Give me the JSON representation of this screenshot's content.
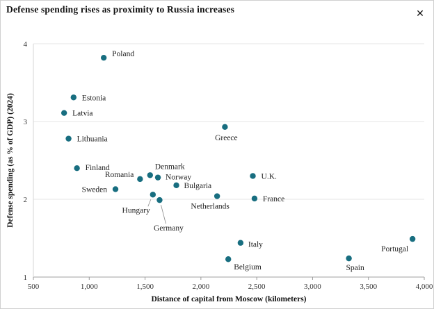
{
  "window": {
    "close_icon": "✕"
  },
  "chart_data": {
    "type": "scatter",
    "title": "Defense spending rises as proximity to Russia increases",
    "xlabel": "Distance of capital from Moscow (kilometers)",
    "ylabel": "Defense spending (as % of GDP) (2024)",
    "xlim": [
      500,
      4000
    ],
    "ylim": [
      1,
      4
    ],
    "x_ticks": [
      500,
      1000,
      1500,
      2000,
      2500,
      3000,
      3500,
      4000
    ],
    "x_tick_labels": [
      "500",
      "1,000",
      "1,500",
      "2,000",
      "2,500",
      "3,000",
      "3,500",
      "4,000"
    ],
    "y_ticks": [
      1,
      2,
      3,
      4
    ],
    "y_tick_labels": [
      "1",
      "2",
      "3",
      "4"
    ],
    "grid": "horizontal",
    "legend": "none",
    "point_color": "#186e80",
    "points": [
      {
        "label": "Poland",
        "x": 1130,
        "y": 3.82,
        "anchor": "start",
        "offset": [
          12,
          -2
        ]
      },
      {
        "label": "Estonia",
        "x": 860,
        "y": 3.31,
        "anchor": "start",
        "offset": [
          12,
          4
        ]
      },
      {
        "label": "Latvia",
        "x": 775,
        "y": 3.11,
        "anchor": "start",
        "offset": [
          12,
          4
        ]
      },
      {
        "label": "Lithuania",
        "x": 815,
        "y": 2.78,
        "anchor": "start",
        "offset": [
          12,
          4
        ]
      },
      {
        "label": "Finland",
        "x": 890,
        "y": 2.4,
        "anchor": "start",
        "offset": [
          12,
          3
        ]
      },
      {
        "label": "Sweden",
        "x": 1235,
        "y": 2.13,
        "anchor": "end",
        "offset": [
          -12,
          4
        ]
      },
      {
        "label": "Romania",
        "x": 1455,
        "y": 2.26,
        "anchor": "end",
        "offset": [
          -9,
          -3
        ]
      },
      {
        "label": "Denmark",
        "x": 1545,
        "y": 2.31,
        "anchor": "start",
        "offset": [
          7,
          -9
        ]
      },
      {
        "label": "Norway",
        "x": 1615,
        "y": 2.28,
        "anchor": "start",
        "offset": [
          11,
          3
        ]
      },
      {
        "label": "Hungary",
        "x": 1570,
        "y": 2.06,
        "anchor": "end",
        "offset": [
          -4,
          26
        ],
        "leader": [
          -3,
          7,
          -7,
          17
        ]
      },
      {
        "label": "Germany",
        "x": 1630,
        "y": 1.99,
        "anchor": "middle",
        "offset": [
          13,
          44
        ],
        "leader": [
          2,
          7,
          9,
          34
        ]
      },
      {
        "label": "Bulgaria",
        "x": 1780,
        "y": 2.18,
        "anchor": "start",
        "offset": [
          11,
          4
        ]
      },
      {
        "label": "Netherlands",
        "x": 2145,
        "y": 2.04,
        "anchor": "middle",
        "offset": [
          -10,
          18
        ]
      },
      {
        "label": "Greece",
        "x": 2215,
        "y": 2.93,
        "anchor": "middle",
        "offset": [
          2,
          19
        ]
      },
      {
        "label": "U.K.",
        "x": 2465,
        "y": 2.3,
        "anchor": "start",
        "offset": [
          12,
          4
        ]
      },
      {
        "label": "France",
        "x": 2480,
        "y": 2.01,
        "anchor": "start",
        "offset": [
          12,
          4
        ]
      },
      {
        "label": "Italy",
        "x": 2355,
        "y": 1.44,
        "anchor": "start",
        "offset": [
          11,
          6
        ]
      },
      {
        "label": "Belgium",
        "x": 2245,
        "y": 1.23,
        "anchor": "start",
        "offset": [
          8,
          15
        ]
      },
      {
        "label": "Spain",
        "x": 3325,
        "y": 1.24,
        "anchor": "middle",
        "offset": [
          9,
          17
        ]
      },
      {
        "label": "Portugal",
        "x": 3895,
        "y": 1.49,
        "anchor": "end",
        "offset": [
          -6,
          18
        ]
      }
    ]
  }
}
